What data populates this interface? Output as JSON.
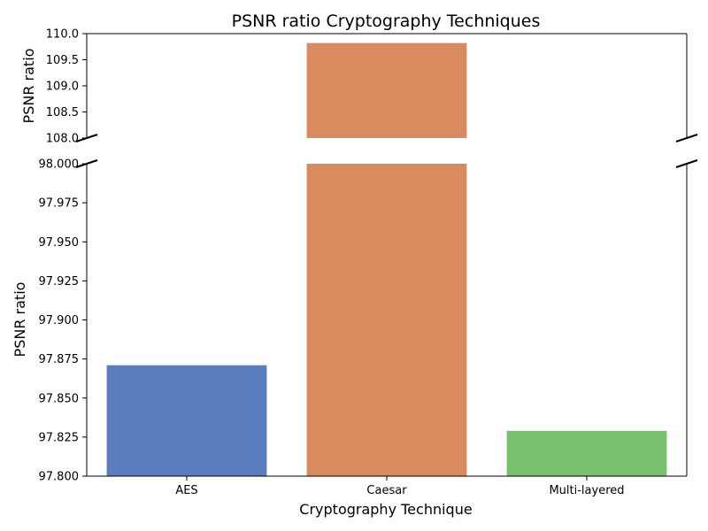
{
  "chart_data": {
    "type": "bar",
    "title": "PSNR ratio Cryptography Techniques",
    "xlabel": "Cryptography Technique",
    "ylabel": "PSNR ratio",
    "categories": [
      "AES",
      "Caesar",
      "Multi-layered"
    ],
    "values": [
      97.871,
      109.82,
      97.829
    ],
    "colors": [
      "#5b7dbf",
      "#d98b5f",
      "#77c06e"
    ],
    "broken_axis": true,
    "upper_ylim": [
      108.0,
      110.0
    ],
    "upper_ticks": [
      "108.0",
      "108.5",
      "109.0",
      "109.5",
      "110.0"
    ],
    "lower_ylim": [
      97.8,
      98.0
    ],
    "lower_ticks": [
      "97.800",
      "97.825",
      "97.850",
      "97.875",
      "97.900",
      "97.925",
      "97.950",
      "97.975",
      "98.000"
    ],
    "grid": false,
    "legend": "none"
  }
}
